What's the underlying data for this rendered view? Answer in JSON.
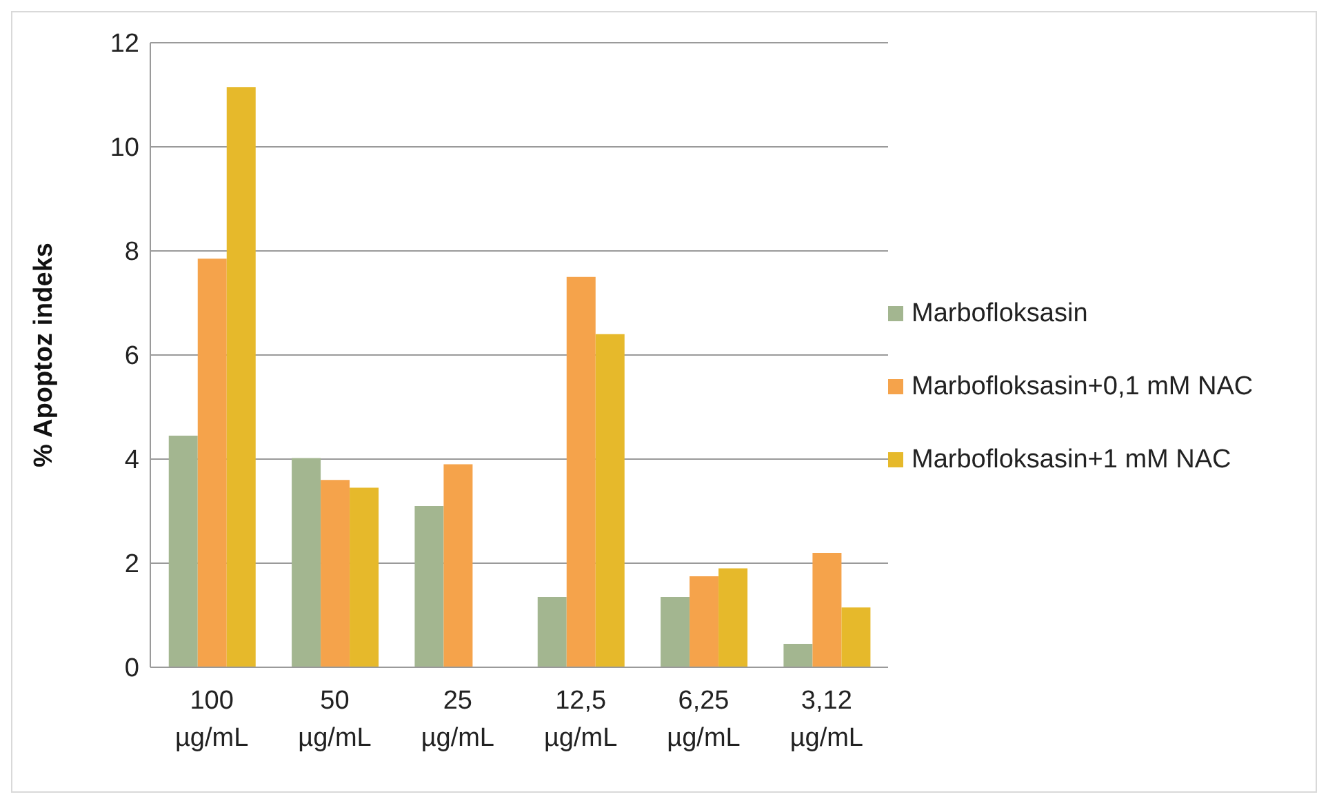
{
  "chart_data": {
    "type": "bar",
    "ylabel": "% Apoptoz indeks",
    "categories": [
      "100 µg/mL",
      "50 µg/mL",
      "25 µg/mL",
      "12,5 µg/mL",
      "6,25 µg/mL",
      "3,12 µg/mL"
    ],
    "series": [
      {
        "name": "Marbofloksasin",
        "color": "#a3b690",
        "values": [
          4.45,
          4.02,
          3.1,
          1.35,
          1.35,
          0.45
        ]
      },
      {
        "name": "Marbofloksasin+0,1 mM NAC",
        "color": "#f5a34b",
        "values": [
          7.85,
          3.6,
          3.9,
          7.5,
          1.75,
          2.2
        ]
      },
      {
        "name": "Marbofloksasin+1 mM NAC",
        "color": "#e6b92b",
        "values": [
          11.15,
          3.45,
          null,
          6.4,
          1.9,
          1.15
        ]
      }
    ],
    "ylim": [
      0,
      12
    ],
    "yticks": [
      0,
      2,
      4,
      6,
      8,
      10,
      12
    ],
    "grid": "y",
    "legend": "right"
  }
}
